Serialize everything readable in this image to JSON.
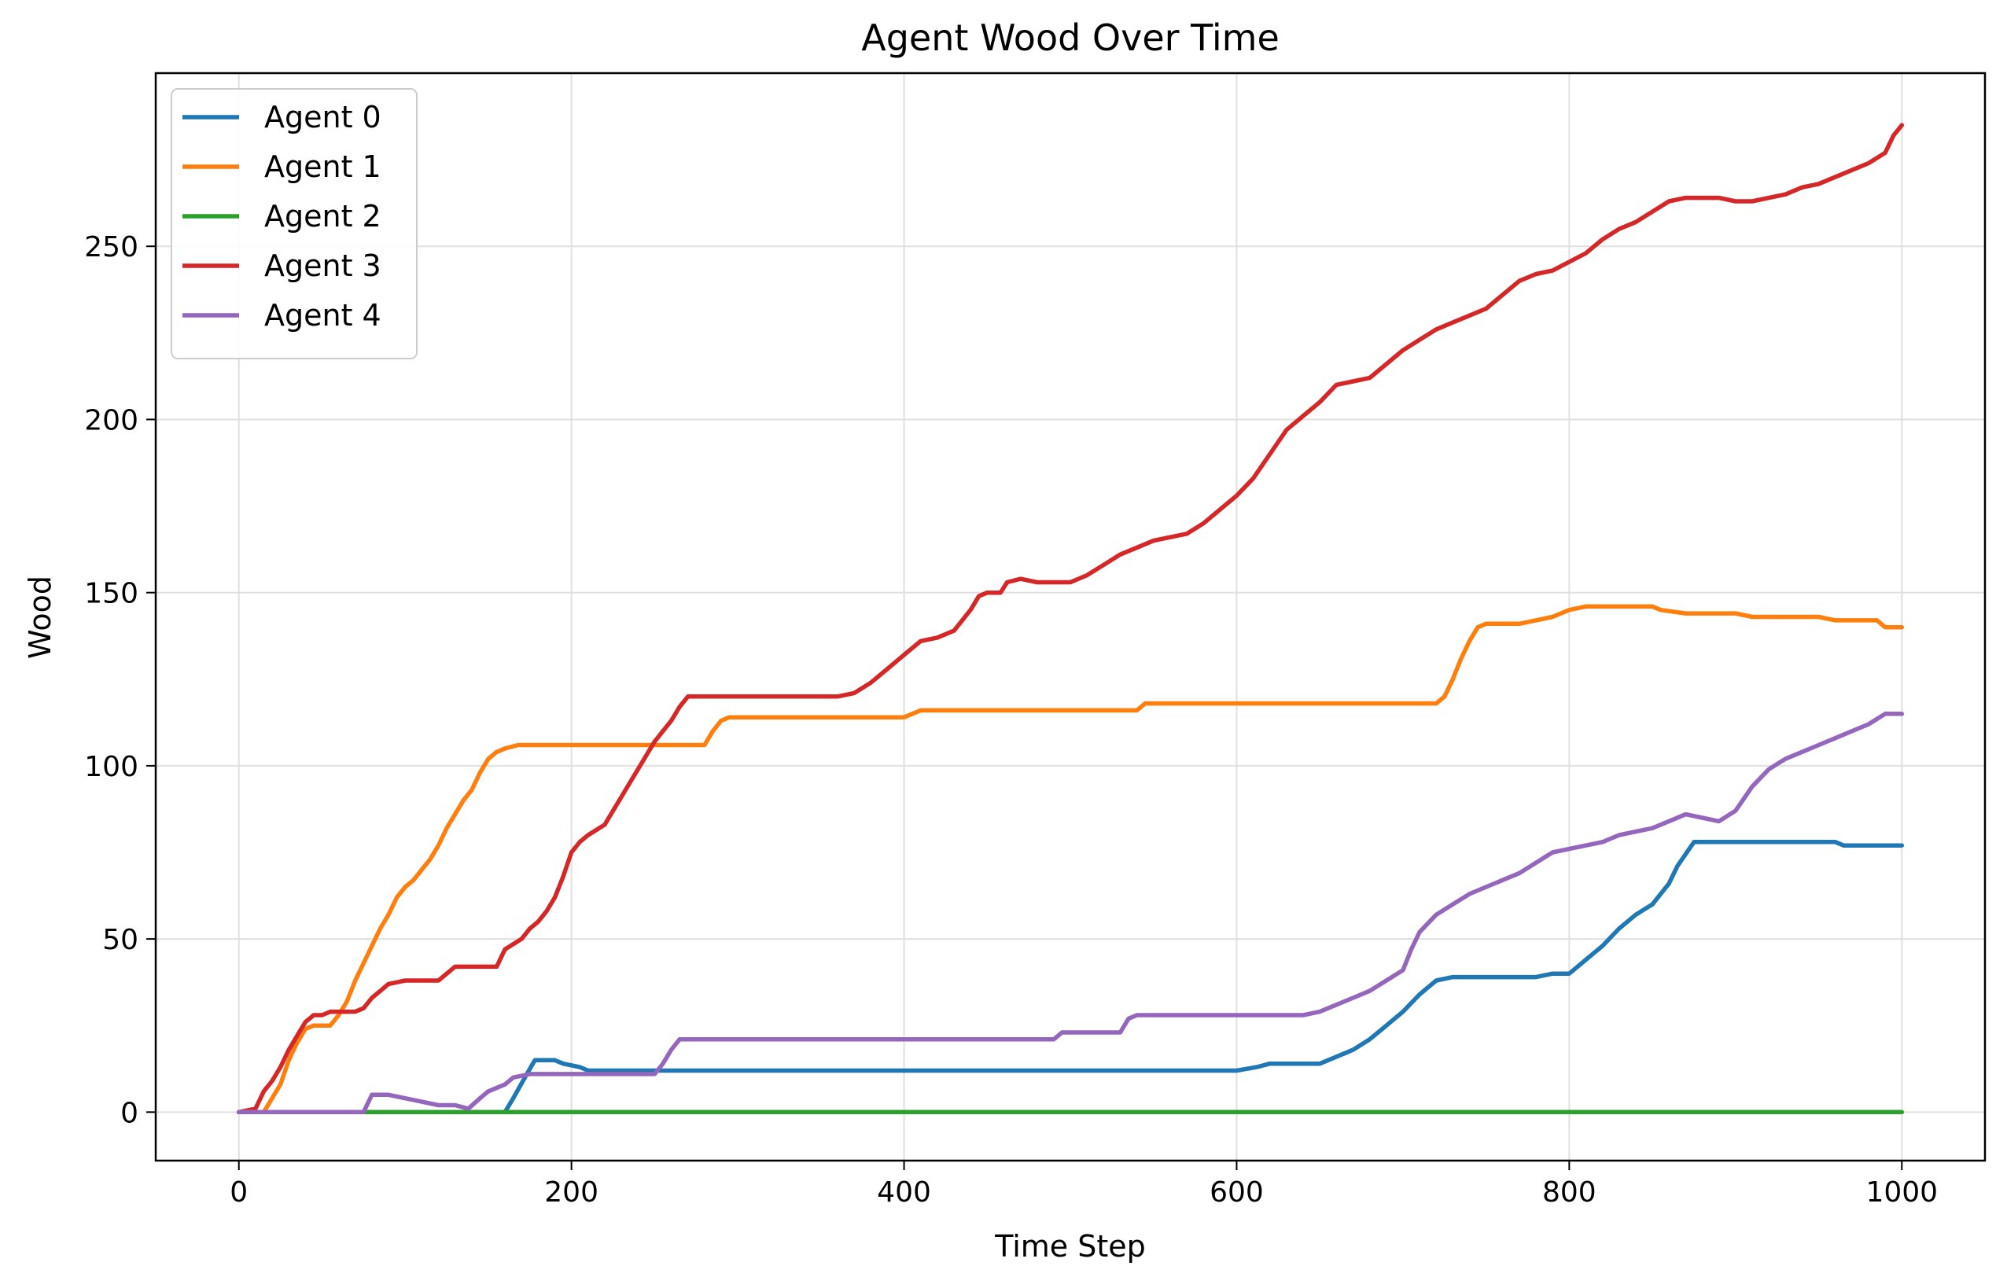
{
  "chart_data": {
    "type": "line",
    "title": "Agent Wood Over Time",
    "xlabel": "Time Step",
    "ylabel": "Wood",
    "xlim": [
      -50,
      1050
    ],
    "ylim": [
      -14,
      300
    ],
    "xticks": [
      0,
      200,
      400,
      600,
      800,
      1000
    ],
    "yticks": [
      0,
      50,
      100,
      150,
      200,
      250
    ],
    "grid": true,
    "legend_position": "top-left",
    "series": [
      {
        "name": "Agent 0",
        "color": "#1f77b4",
        "points": [
          [
            0,
            0
          ],
          [
            160,
            0
          ],
          [
            165,
            4
          ],
          [
            172,
            10
          ],
          [
            178,
            15
          ],
          [
            190,
            15
          ],
          [
            195,
            14
          ],
          [
            205,
            13
          ],
          [
            210,
            12
          ],
          [
            250,
            12
          ],
          [
            600,
            12
          ],
          [
            612,
            13
          ],
          [
            620,
            14
          ],
          [
            650,
            14
          ],
          [
            660,
            16
          ],
          [
            670,
            18
          ],
          [
            680,
            21
          ],
          [
            690,
            25
          ],
          [
            700,
            29
          ],
          [
            710,
            34
          ],
          [
            720,
            38
          ],
          [
            730,
            39
          ],
          [
            780,
            39
          ],
          [
            790,
            40
          ],
          [
            800,
            40
          ],
          [
            810,
            44
          ],
          [
            820,
            48
          ],
          [
            830,
            53
          ],
          [
            840,
            57
          ],
          [
            850,
            60
          ],
          [
            860,
            66
          ],
          [
            865,
            71
          ],
          [
            875,
            78
          ],
          [
            960,
            78
          ],
          [
            965,
            77
          ],
          [
            1000,
            77
          ]
        ]
      },
      {
        "name": "Agent 1",
        "color": "#ff7f0e",
        "points": [
          [
            0,
            0
          ],
          [
            15,
            0
          ],
          [
            20,
            4
          ],
          [
            25,
            8
          ],
          [
            30,
            15
          ],
          [
            35,
            20
          ],
          [
            40,
            24
          ],
          [
            45,
            25
          ],
          [
            55,
            25
          ],
          [
            60,
            28
          ],
          [
            65,
            32
          ],
          [
            70,
            38
          ],
          [
            75,
            43
          ],
          [
            80,
            48
          ],
          [
            85,
            53
          ],
          [
            90,
            57
          ],
          [
            95,
            62
          ],
          [
            100,
            65
          ],
          [
            105,
            67
          ],
          [
            110,
            70
          ],
          [
            115,
            73
          ],
          [
            120,
            77
          ],
          [
            125,
            82
          ],
          [
            130,
            86
          ],
          [
            135,
            90
          ],
          [
            140,
            93
          ],
          [
            145,
            98
          ],
          [
            150,
            102
          ],
          [
            155,
            104
          ],
          [
            160,
            105
          ],
          [
            168,
            106
          ],
          [
            280,
            106
          ],
          [
            285,
            110
          ],
          [
            290,
            113
          ],
          [
            295,
            114
          ],
          [
            400,
            114
          ],
          [
            410,
            116
          ],
          [
            540,
            116
          ],
          [
            545,
            118
          ],
          [
            720,
            118
          ],
          [
            725,
            120
          ],
          [
            730,
            125
          ],
          [
            735,
            131
          ],
          [
            740,
            136
          ],
          [
            745,
            140
          ],
          [
            750,
            141
          ],
          [
            770,
            141
          ],
          [
            780,
            142
          ],
          [
            790,
            143
          ],
          [
            800,
            145
          ],
          [
            810,
            146
          ],
          [
            850,
            146
          ],
          [
            855,
            145
          ],
          [
            870,
            144
          ],
          [
            900,
            144
          ],
          [
            910,
            143
          ],
          [
            950,
            143
          ],
          [
            960,
            142
          ],
          [
            985,
            142
          ],
          [
            990,
            140
          ],
          [
            1000,
            140
          ]
        ]
      },
      {
        "name": "Agent 2",
        "color": "#2ca02c",
        "points": [
          [
            0,
            0
          ],
          [
            1000,
            0
          ]
        ]
      },
      {
        "name": "Agent 3",
        "color": "#d62728",
        "points": [
          [
            0,
            0
          ],
          [
            10,
            1
          ],
          [
            15,
            6
          ],
          [
            20,
            9
          ],
          [
            25,
            13
          ],
          [
            30,
            18
          ],
          [
            35,
            22
          ],
          [
            40,
            26
          ],
          [
            45,
            28
          ],
          [
            50,
            28
          ],
          [
            55,
            29
          ],
          [
            70,
            29
          ],
          [
            75,
            30
          ],
          [
            80,
            33
          ],
          [
            85,
            35
          ],
          [
            90,
            37
          ],
          [
            100,
            38
          ],
          [
            120,
            38
          ],
          [
            130,
            42
          ],
          [
            155,
            42
          ],
          [
            160,
            47
          ],
          [
            170,
            50
          ],
          [
            175,
            53
          ],
          [
            180,
            55
          ],
          [
            185,
            58
          ],
          [
            190,
            62
          ],
          [
            195,
            68
          ],
          [
            200,
            75
          ],
          [
            205,
            78
          ],
          [
            210,
            80
          ],
          [
            220,
            83
          ],
          [
            225,
            87
          ],
          [
            230,
            91
          ],
          [
            235,
            95
          ],
          [
            240,
            99
          ],
          [
            245,
            103
          ],
          [
            250,
            107
          ],
          [
            255,
            110
          ],
          [
            260,
            113
          ],
          [
            265,
            117
          ],
          [
            270,
            120
          ],
          [
            360,
            120
          ],
          [
            370,
            121
          ],
          [
            380,
            124
          ],
          [
            390,
            128
          ],
          [
            400,
            132
          ],
          [
            410,
            136
          ],
          [
            420,
            137
          ],
          [
            430,
            139
          ],
          [
            440,
            145
          ],
          [
            445,
            149
          ],
          [
            450,
            150
          ],
          [
            458,
            150
          ],
          [
            462,
            153
          ],
          [
            470,
            154
          ],
          [
            480,
            153
          ],
          [
            500,
            153
          ],
          [
            510,
            155
          ],
          [
            520,
            158
          ],
          [
            530,
            161
          ],
          [
            540,
            163
          ],
          [
            550,
            165
          ],
          [
            560,
            166
          ],
          [
            570,
            167
          ],
          [
            580,
            170
          ],
          [
            590,
            174
          ],
          [
            600,
            178
          ],
          [
            610,
            183
          ],
          [
            620,
            190
          ],
          [
            630,
            197
          ],
          [
            640,
            201
          ],
          [
            650,
            205
          ],
          [
            660,
            210
          ],
          [
            670,
            211
          ],
          [
            680,
            212
          ],
          [
            690,
            216
          ],
          [
            700,
            220
          ],
          [
            710,
            223
          ],
          [
            720,
            226
          ],
          [
            730,
            228
          ],
          [
            740,
            230
          ],
          [
            750,
            232
          ],
          [
            760,
            236
          ],
          [
            770,
            240
          ],
          [
            780,
            242
          ],
          [
            790,
            243
          ],
          [
            810,
            248
          ],
          [
            820,
            252
          ],
          [
            830,
            255
          ],
          [
            840,
            257
          ],
          [
            850,
            260
          ],
          [
            860,
            263
          ],
          [
            870,
            264
          ],
          [
            890,
            264
          ],
          [
            900,
            263
          ],
          [
            910,
            263
          ],
          [
            920,
            264
          ],
          [
            930,
            265
          ],
          [
            940,
            267
          ],
          [
            950,
            268
          ],
          [
            960,
            270
          ],
          [
            970,
            272
          ],
          [
            980,
            274
          ],
          [
            990,
            277
          ],
          [
            995,
            282
          ],
          [
            1000,
            285
          ]
        ]
      },
      {
        "name": "Agent 4",
        "color": "#9467bd",
        "points": [
          [
            0,
            0
          ],
          [
            75,
            0
          ],
          [
            80,
            5
          ],
          [
            90,
            5
          ],
          [
            100,
            4
          ],
          [
            110,
            3
          ],
          [
            120,
            2
          ],
          [
            130,
            2
          ],
          [
            138,
            1
          ],
          [
            145,
            4
          ],
          [
            150,
            6
          ],
          [
            160,
            8
          ],
          [
            165,
            10
          ],
          [
            175,
            11
          ],
          [
            250,
            11
          ],
          [
            255,
            14
          ],
          [
            260,
            18
          ],
          [
            265,
            21
          ],
          [
            490,
            21
          ],
          [
            495,
            23
          ],
          [
            530,
            23
          ],
          [
            535,
            27
          ],
          [
            540,
            28
          ],
          [
            640,
            28
          ],
          [
            650,
            29
          ],
          [
            660,
            31
          ],
          [
            670,
            33
          ],
          [
            680,
            35
          ],
          [
            690,
            38
          ],
          [
            700,
            41
          ],
          [
            705,
            47
          ],
          [
            710,
            52
          ],
          [
            720,
            57
          ],
          [
            730,
            60
          ],
          [
            740,
            63
          ],
          [
            750,
            65
          ],
          [
            760,
            67
          ],
          [
            770,
            69
          ],
          [
            780,
            72
          ],
          [
            790,
            75
          ],
          [
            800,
            76
          ],
          [
            810,
            77
          ],
          [
            820,
            78
          ],
          [
            830,
            80
          ],
          [
            840,
            81
          ],
          [
            850,
            82
          ],
          [
            860,
            84
          ],
          [
            870,
            86
          ],
          [
            880,
            85
          ],
          [
            890,
            84
          ],
          [
            900,
            87
          ],
          [
            910,
            94
          ],
          [
            920,
            99
          ],
          [
            930,
            102
          ],
          [
            940,
            104
          ],
          [
            950,
            106
          ],
          [
            960,
            108
          ],
          [
            970,
            110
          ],
          [
            980,
            112
          ],
          [
            990,
            115
          ],
          [
            1000,
            115
          ]
        ]
      }
    ]
  }
}
